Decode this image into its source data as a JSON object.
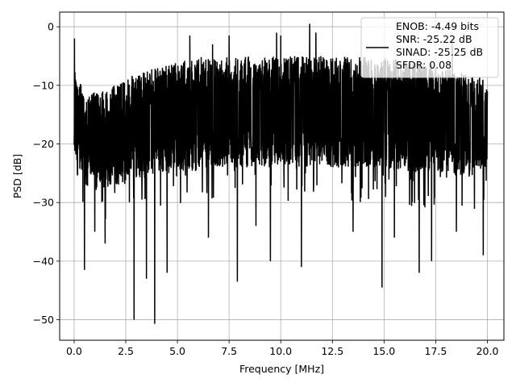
{
  "chart_data": {
    "type": "line",
    "xlabel": "Frequency [MHz]",
    "ylabel": "PSD [dB]",
    "xlim": [
      -0.7,
      20.8
    ],
    "ylim": [
      -53.5,
      2.5
    ],
    "xticks": [
      0,
      2.5,
      5,
      7.5,
      10,
      12.5,
      15,
      17.5,
      20
    ],
    "xtick_labels": [
      "0.0",
      "2.5",
      "5.0",
      "7.5",
      "10.0",
      "12.5",
      "15.0",
      "17.5",
      "20.0"
    ],
    "yticks": [
      0,
      -10,
      -20,
      -30,
      -40,
      -50
    ],
    "ytick_labels": [
      "0",
      "−10",
      "−20",
      "−30",
      "−40",
      "−50"
    ],
    "grid": true,
    "legend_placement": "top-right",
    "legend_lines": [
      "ENOB: -4.49 bits",
      "SNR: -25.22 dB",
      "SINAD: -25.25 dB",
      "SFDR: 0.08"
    ],
    "series": [
      {
        "color": "#000000",
        "x_range": [
          0,
          20
        ],
        "envelope": {
          "x": [
            0,
            0.5,
            1,
            2,
            3,
            4,
            5,
            6,
            7,
            8,
            9,
            10,
            11,
            12,
            13,
            14,
            15,
            16,
            17,
            18,
            19,
            20
          ],
          "upper": [
            -6,
            -12,
            -11,
            -10,
            -8,
            -7,
            -6,
            -5,
            -5,
            -5,
            -5,
            -5,
            -5,
            -5,
            -5,
            -5,
            -5,
            -6,
            -6,
            -7,
            -8,
            -9
          ],
          "lower": [
            -22,
            -27,
            -28,
            -27,
            -26,
            -25,
            -25,
            -24,
            -24,
            -24,
            -24,
            -24,
            -24,
            -24,
            -24,
            -24,
            -24,
            -25,
            -25,
            -25,
            -26,
            -24
          ]
        },
        "peaks": [
          {
            "x": 0.02,
            "y": -2
          },
          {
            "x": 5.6,
            "y": -1.5
          },
          {
            "x": 6.7,
            "y": -3
          },
          {
            "x": 7.5,
            "y": -1.5
          },
          {
            "x": 9.8,
            "y": -1
          },
          {
            "x": 10.0,
            "y": -1.5
          },
          {
            "x": 11.4,
            "y": 0.5
          },
          {
            "x": 11.7,
            "y": -1
          },
          {
            "x": 18.3,
            "y": -2
          }
        ],
        "dips": [
          {
            "x": 0.5,
            "y": -41.5
          },
          {
            "x": 1.0,
            "y": -35
          },
          {
            "x": 1.5,
            "y": -37
          },
          {
            "x": 2.9,
            "y": -50
          },
          {
            "x": 3.5,
            "y": -43
          },
          {
            "x": 3.9,
            "y": -50.7
          },
          {
            "x": 4.5,
            "y": -42
          },
          {
            "x": 6.5,
            "y": -36
          },
          {
            "x": 7.9,
            "y": -43.5
          },
          {
            "x": 8.8,
            "y": -34
          },
          {
            "x": 9.5,
            "y": -40
          },
          {
            "x": 11.0,
            "y": -41
          },
          {
            "x": 13.5,
            "y": -35
          },
          {
            "x": 14.9,
            "y": -44.5
          },
          {
            "x": 15.5,
            "y": -36
          },
          {
            "x": 16.7,
            "y": -42
          },
          {
            "x": 17.3,
            "y": -40
          },
          {
            "x": 18.5,
            "y": -35
          },
          {
            "x": 19.8,
            "y": -39
          }
        ]
      }
    ]
  }
}
